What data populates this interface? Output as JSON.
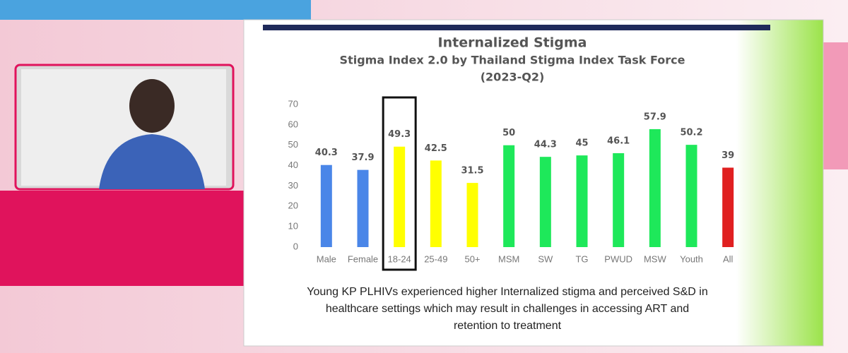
{
  "chart_data": {
    "type": "bar",
    "title": "Internalized Stigma",
    "subtitle": [
      "Stigma Index 2.0 by Thailand Stigma Index Task Force",
      "(2023-Q2)"
    ],
    "categories": [
      "Male",
      "Female",
      "18-24",
      "25-49",
      "50+",
      "MSM",
      "SW",
      "TG",
      "PWUD",
      "MSW",
      "Youth",
      "All"
    ],
    "values": [
      40.3,
      37.9,
      49.3,
      42.5,
      31.5,
      50,
      44.3,
      45,
      46.1,
      57.9,
      50.2,
      39
    ],
    "colors": [
      "#4a86e8",
      "#4a86e8",
      "#ffff00",
      "#ffff00",
      "#ffff00",
      "#1ee85a",
      "#1ee85a",
      "#1ee85a",
      "#1ee85a",
      "#1ee85a",
      "#1ee85a",
      "#e02020"
    ],
    "ylim": [
      0,
      70
    ],
    "yticks": [
      0,
      10,
      20,
      30,
      40,
      50,
      60,
      70
    ],
    "grid": false,
    "caption": [
      "Young KP PLHIVs experienced higher Internalized stigma and perceived S&D in",
      "healthcare settings which may result in challenges in accessing ART and",
      "retention to treatment"
    ]
  }
}
